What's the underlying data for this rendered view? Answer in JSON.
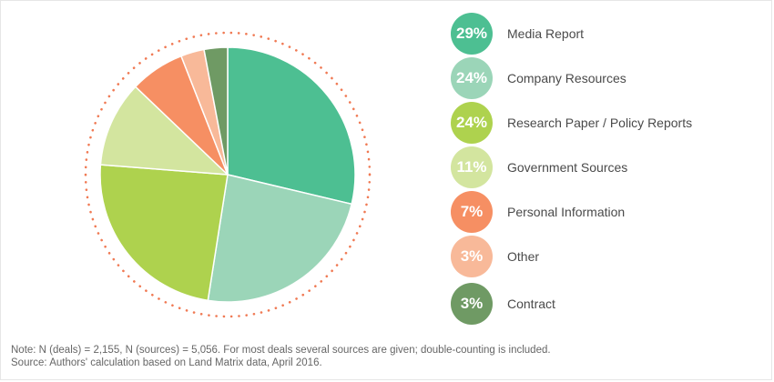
{
  "chart_data": {
    "type": "pie",
    "slices": [
      {
        "label": "Media Report",
        "value": 29,
        "value_label": "29%",
        "color": "#4dbf92"
      },
      {
        "label": "Company Resources",
        "value": 24,
        "value_label": "24%",
        "color": "#9bd5b8"
      },
      {
        "label": "Research Paper / Policy Reports",
        "value": 24,
        "value_label": "24%",
        "color": "#aed24e"
      },
      {
        "label": "Government Sources",
        "value": 11,
        "value_label": "11%",
        "color": "#d3e59f"
      },
      {
        "label": "Personal Information",
        "value": 7,
        "value_label": "7%",
        "color": "#f68f63"
      },
      {
        "label": "Other",
        "value": 3,
        "value_label": "3%",
        "color": "#f8b999"
      },
      {
        "label": "Contract",
        "value": 3,
        "value_label": "3%",
        "color": "#6f9a64"
      }
    ],
    "start_direction": "top",
    "direction": "clockwise",
    "outer_ring_color": "#f07a54",
    "legend_placement": "right"
  },
  "notes": {
    "note": "Note: N (deals) = 2,155, N (sources) = 5,056. For most deals several sources are given; double-counting is included.",
    "source": "Source: Authors' calculation based on Land Matrix data, April 2016."
  }
}
